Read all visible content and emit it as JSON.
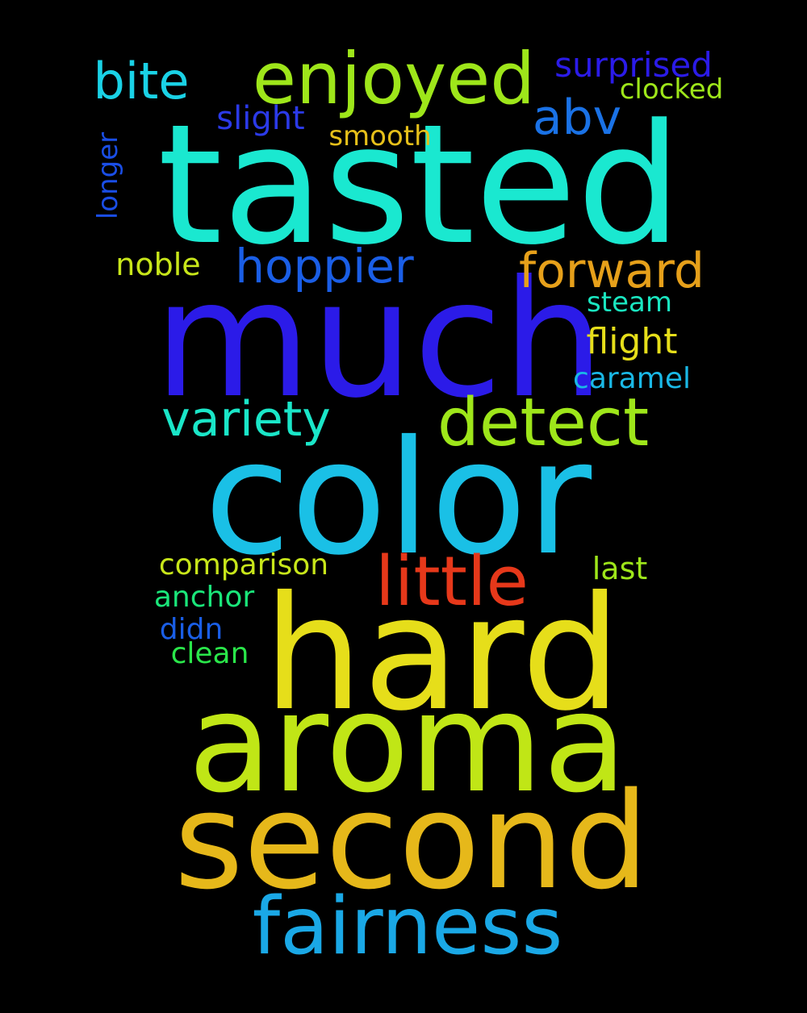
{
  "background": "#000000",
  "words": [
    {
      "text": "tasted",
      "color": "#1ae8d0"
    },
    {
      "text": "much",
      "color": "#2b1be8"
    },
    {
      "text": "color",
      "color": "#1ac0e6"
    },
    {
      "text": "hard",
      "color": "#e6de1a"
    },
    {
      "text": "aroma",
      "color": "#c0e616"
    },
    {
      "text": "second",
      "color": "#e6b81a"
    },
    {
      "text": "fairness",
      "color": "#1aa8e6"
    },
    {
      "text": "enjoyed",
      "color": "#9ee61a"
    },
    {
      "text": "bite",
      "color": "#1ad2e6"
    },
    {
      "text": "surprised",
      "color": "#2b1be8"
    },
    {
      "text": "clocked",
      "color": "#9ee61a"
    },
    {
      "text": "abv",
      "color": "#1a72e6"
    },
    {
      "text": "slight",
      "color": "#2b3ae8"
    },
    {
      "text": "smooth",
      "color": "#e6c01a"
    },
    {
      "text": "longer",
      "color": "#1a4ee6"
    },
    {
      "text": "noble",
      "color": "#c8e61a"
    },
    {
      "text": "hoppier",
      "color": "#1a5ee6"
    },
    {
      "text": "forward",
      "color": "#e6a01a"
    },
    {
      "text": "steam",
      "color": "#1ae6c0"
    },
    {
      "text": "flight",
      "color": "#e6de1a"
    },
    {
      "text": "caramel",
      "color": "#1ab8e6"
    },
    {
      "text": "variety",
      "color": "#1ae6c8"
    },
    {
      "text": "detect",
      "color": "#9ee61a"
    },
    {
      "text": "little",
      "color": "#e6381a"
    },
    {
      "text": "comparison",
      "color": "#c8e61a"
    },
    {
      "text": "last",
      "color": "#9ee61a"
    },
    {
      "text": "anchor",
      "color": "#1ae67a"
    },
    {
      "text": "didn",
      "color": "#1a5ee6"
    },
    {
      "text": "clean",
      "color": "#2ae64a"
    }
  ]
}
